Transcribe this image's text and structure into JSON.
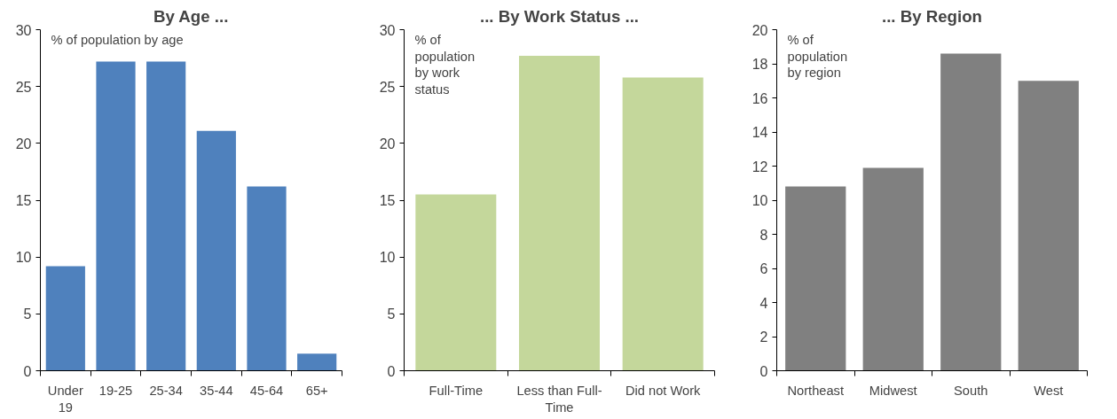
{
  "chart_data": [
    {
      "type": "bar",
      "title": "By Age ...",
      "categories": [
        "Under 19",
        "19-25",
        "25-34",
        "35-44",
        "45-64",
        "65+"
      ],
      "values": [
        9.2,
        27.2,
        27.2,
        21.1,
        16.2,
        1.5
      ],
      "color": "#4f81bd",
      "ylim": [
        0,
        30
      ],
      "yticks": [
        0,
        5,
        10,
        15,
        20,
        25,
        30
      ],
      "annotations": [
        "% of population by age"
      ],
      "grid": false
    },
    {
      "type": "bar",
      "title": "... By Work Status ...",
      "categories": [
        "Full-Time",
        "Less than Full-Time",
        "Did not Work"
      ],
      "values": [
        15.5,
        27.7,
        25.8
      ],
      "color": "#c4d79b",
      "ylim": [
        0,
        30
      ],
      "yticks": [
        0,
        5,
        10,
        15,
        20,
        25,
        30
      ],
      "annotations": [
        "% of population by work status"
      ],
      "grid": false
    },
    {
      "type": "bar",
      "title": "... By Region",
      "categories": [
        "Northeast",
        "Midwest",
        "South",
        "West"
      ],
      "values": [
        10.8,
        11.9,
        18.6,
        17.0
      ],
      "color": "#808080",
      "ylim": [
        0,
        20
      ],
      "yticks": [
        0,
        2,
        4,
        6,
        8,
        10,
        12,
        14,
        16,
        18,
        20
      ],
      "annotations": [
        "% of population by region"
      ],
      "grid": false
    }
  ]
}
